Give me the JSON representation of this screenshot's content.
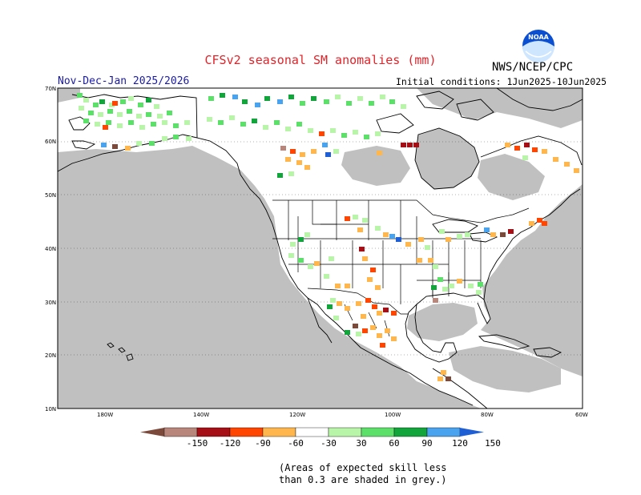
{
  "header": {
    "title": "CFSv2 seasonal SM anomalies (mm)",
    "agency": "NWS/NCEP/CPC",
    "period": "Nov-Dec-Jan 2025/2026",
    "initial_conditions": "Initial conditions: 1Jun2025-10Jun2025"
  },
  "logo": {
    "text": "NOAA"
  },
  "map": {
    "lat_labels": [
      "70N",
      "60N",
      "50N",
      "40N",
      "30N",
      "20N",
      "10N"
    ],
    "lon_labels": [
      "180W",
      "140W",
      "120W",
      "100W",
      "80W",
      "60W"
    ],
    "colors": {
      "grey_low_skill": "#c0c0c0",
      "land": "#ffffff",
      "ocean": "#ffffff"
    }
  },
  "colorbar": {
    "bins": [
      {
        "color": "#7b4a3a"
      },
      {
        "color": "#b8867a"
      },
      {
        "color": "#a50f15"
      },
      {
        "color": "#ff4500"
      },
      {
        "color": "#ffb74d"
      },
      {
        "color": "#ffffff"
      },
      {
        "color": "#b8f5a8"
      },
      {
        "color": "#5de06a"
      },
      {
        "color": "#12a53c"
      },
      {
        "color": "#4aa3ee"
      },
      {
        "color": "#1f5fd6"
      }
    ],
    "labels": [
      "-150",
      "-120",
      "-90",
      "-60",
      "-30",
      "30",
      "60",
      "90",
      "120",
      "150"
    ]
  },
  "note": {
    "line1": "(Areas of expected skill less",
    "line2": "than 0.3 are shaded in grey.)"
  }
}
